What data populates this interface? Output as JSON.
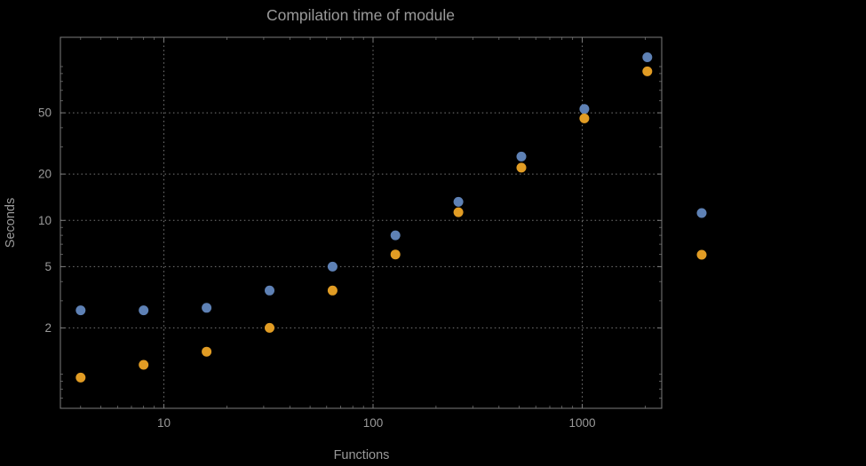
{
  "chart_data": {
    "type": "scatter",
    "title": "Compilation time of module",
    "xlabel": "Functions",
    "ylabel": "Seconds",
    "x_scale": "log",
    "y_scale": "log",
    "x_range": [
      3.2,
      2400
    ],
    "y_range": [
      0.6,
      155
    ],
    "x_ticks": [
      10,
      100,
      1000
    ],
    "x_tick_labels": [
      "10",
      "100",
      "1000"
    ],
    "y_ticks": [
      2,
      5,
      10,
      20,
      50
    ],
    "y_tick_labels": [
      "2",
      "5",
      "10",
      "20",
      "50"
    ],
    "grid": true,
    "x": [
      4,
      8,
      16,
      32,
      64,
      128,
      256,
      512,
      1024,
      2048
    ],
    "series": [
      {
        "name": "blue-series",
        "color": "#5e81b5",
        "values": [
          2.6,
          2.6,
          2.7,
          3.5,
          5.0,
          8.0,
          13.2,
          26,
          53,
          115
        ]
      },
      {
        "name": "orange-series",
        "color": "#e19c24",
        "values": [
          0.95,
          1.15,
          1.4,
          2.0,
          3.5,
          6.0,
          11.3,
          22,
          46,
          93
        ]
      }
    ],
    "legend": {
      "position": "right-outside",
      "labels_visible": false,
      "marker_colors": [
        "#5e81b5",
        "#e19c24"
      ]
    }
  },
  "style": {
    "background": "#000000",
    "frame_color": "#7d7d7d",
    "grid_color": "#787878",
    "text_color": "#9a9a9a",
    "point_radius": 5.5
  }
}
